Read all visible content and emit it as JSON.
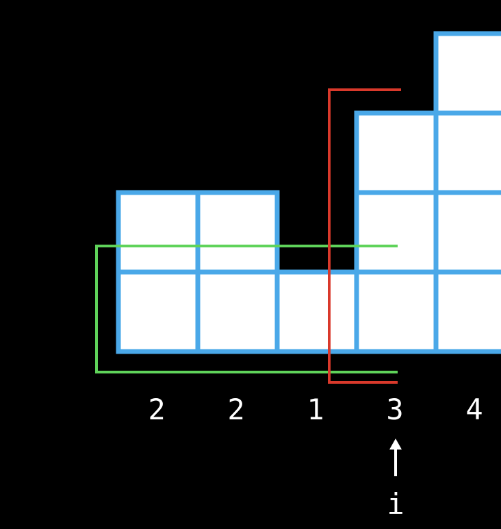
{
  "heights": [
    2,
    2,
    1,
    3,
    4
  ],
  "bar_labels": [
    "2",
    "2",
    "1",
    "3",
    "4"
  ],
  "pointer": {
    "label": "i",
    "index": 3
  },
  "colors": {
    "background": "#000000",
    "cell_fill": "#ffffff",
    "cell_border": "#4aa8e8",
    "green_bracket": "#5fd35a",
    "red_bracket": "#d9392b",
    "text": "#ffffff"
  }
}
